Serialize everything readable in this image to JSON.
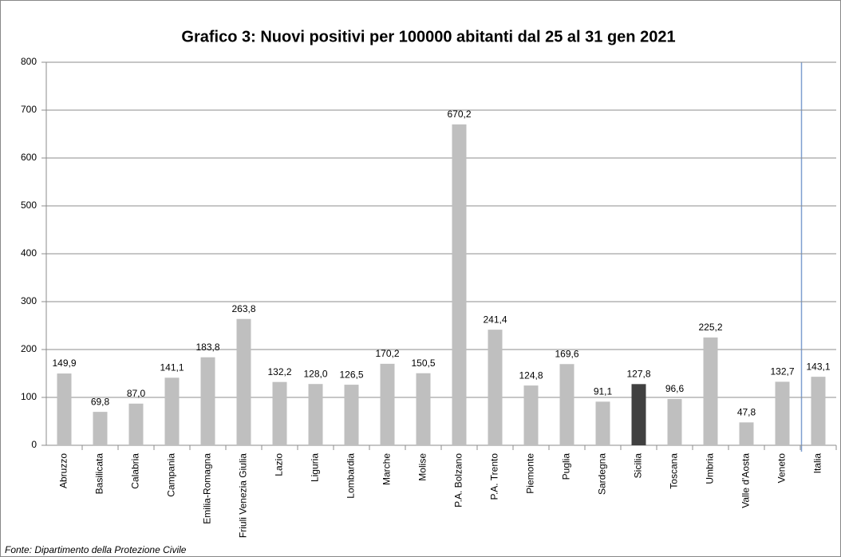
{
  "chart_data": {
    "type": "bar",
    "title": "Grafico 3: Nuovi positivi per 100000 abitanti dal 25 al 31 gen 2021",
    "source": "Fonte: Dipartimento della Protezione Civile",
    "categories": [
      "Abruzzo",
      "Basilicata",
      "Calabria",
      "Campania",
      "Emilia-Romagna",
      "Friuli Venezia Giulia",
      "Lazio",
      "Liguria",
      "Lombardia",
      "Marche",
      "Molise",
      "P.A. Bolzano",
      "P.A. Trento",
      "Piemonte",
      "Puglia",
      "Sardegna",
      "Sicilia",
      "Toscana",
      "Umbria",
      "Valle d'Aosta",
      "Veneto",
      "Italia"
    ],
    "values": [
      149.9,
      69.8,
      87.0,
      141.1,
      183.8,
      263.8,
      132.2,
      128.0,
      126.5,
      170.2,
      150.5,
      670.2,
      241.4,
      124.8,
      169.6,
      91.1,
      127.8,
      96.6,
      225.2,
      47.8,
      132.7,
      143.1
    ],
    "value_labels": [
      "149,9",
      "69,8",
      "87,0",
      "141,1",
      "183,8",
      "263,8",
      "132,2",
      "128,0",
      "126,5",
      "170,2",
      "150,5",
      "670,2",
      "241,4",
      "124,8",
      "169,6",
      "91,1",
      "127,8",
      "96,6",
      "225,2",
      "47,8",
      "132,7",
      "143,1"
    ],
    "colors": [
      "#bfbfbf",
      "#bfbfbf",
      "#bfbfbf",
      "#bfbfbf",
      "#bfbfbf",
      "#bfbfbf",
      "#bfbfbf",
      "#bfbfbf",
      "#bfbfbf",
      "#bfbfbf",
      "#bfbfbf",
      "#bfbfbf",
      "#bfbfbf",
      "#bfbfbf",
      "#bfbfbf",
      "#bfbfbf",
      "#404040",
      "#bfbfbf",
      "#bfbfbf",
      "#bfbfbf",
      "#bfbfbf",
      "#bfbfbf"
    ],
    "ylim": [
      0,
      800
    ],
    "yticks": [
      0,
      100,
      200,
      300,
      400,
      500,
      600,
      700,
      800
    ],
    "grid": true
  }
}
